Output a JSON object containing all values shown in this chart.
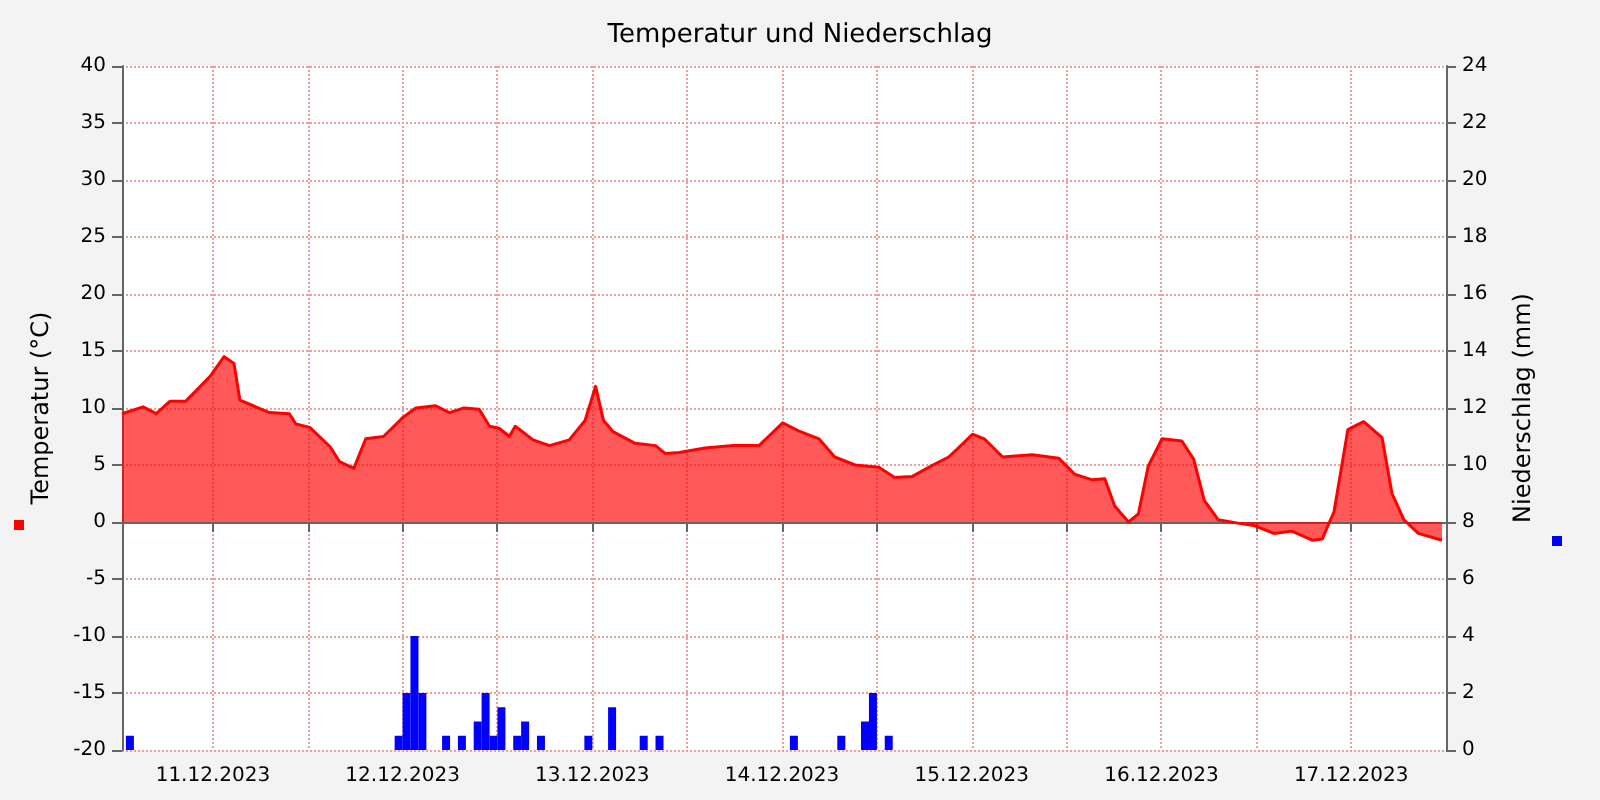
{
  "chart_data": {
    "type": "area",
    "title": "Temperatur und Niederschlag",
    "ylabel": "Temperatur (°C)",
    "y2label": "Niederschlag (mm)",
    "xlim": [
      "2023-12-11T00:30",
      "2023-12-18T00:00"
    ],
    "xticks": [
      {
        "value": "2023-12-11T12:00",
        "label": "11.12.2023"
      },
      {
        "value": "2023-12-12T00:00",
        "label": null
      },
      {
        "value": "2023-12-12T12:00",
        "label": "12.12.2023"
      },
      {
        "value": "2023-12-13T00:00",
        "label": null
      },
      {
        "value": "2023-12-13T12:00",
        "label": "13.12.2023"
      },
      {
        "value": "2023-12-14T00:00",
        "label": null
      },
      {
        "value": "2023-12-14T12:00",
        "label": "14.12.2023"
      },
      {
        "value": "2023-12-15T00:00",
        "label": null
      },
      {
        "value": "2023-12-15T12:00",
        "label": "15.12.2023"
      },
      {
        "value": "2023-12-16T00:00",
        "label": null
      },
      {
        "value": "2023-12-16T12:00",
        "label": "16.12.2023"
      },
      {
        "value": "2023-12-17T00:00",
        "label": null
      },
      {
        "value": "2023-12-17T12:00",
        "label": "17.12.2023"
      }
    ],
    "ylim": [
      -20,
      40
    ],
    "yticks": [
      -20,
      -15,
      -10,
      -5,
      0,
      5,
      10,
      15,
      20,
      25,
      30,
      35,
      40
    ],
    "y2lim": [
      0,
      24
    ],
    "y2ticks": [
      0,
      2,
      4,
      6,
      8,
      10,
      12,
      14,
      16,
      18,
      20,
      22,
      24
    ],
    "grid": true,
    "series": [
      {
        "color": "#ff0000",
        "x": [
          "2023-12-11T00:30",
          "2023-12-11T03:10",
          "2023-12-11T04:50",
          "2023-12-11T06:35",
          "2023-12-11T08:35",
          "2023-12-11T10:25",
          "2023-12-11T11:40",
          "2023-12-11T13:25",
          "2023-12-11T14:40",
          "2023-12-11T15:25",
          "2023-12-11T17:25",
          "2023-12-11T19:10",
          "2023-12-11T21:40",
          "2023-12-11T22:30",
          "2023-12-12T00:15",
          "2023-12-12T02:50",
          "2023-12-12T04:00",
          "2023-12-12T05:50",
          "2023-12-12T07:20",
          "2023-12-12T09:35",
          "2023-12-12T12:05",
          "2023-12-12T13:40",
          "2023-12-12T16:10",
          "2023-12-12T17:55",
          "2023-12-12T19:45",
          "2023-12-12T21:40",
          "2023-12-12T23:00",
          "2023-12-13T00:15",
          "2023-12-13T01:30",
          "2023-12-13T02:15",
          "2023-12-13T04:30",
          "2023-12-13T06:35",
          "2023-12-13T09:05",
          "2023-12-13T11:05",
          "2023-12-13T12:25",
          "2023-12-13T13:25",
          "2023-12-13T14:40",
          "2023-12-13T17:25",
          "2023-12-13T20:00",
          "2023-12-13T21:15",
          "2023-12-13T23:00",
          "2023-12-14T02:15",
          "2023-12-14T05:50",
          "2023-12-14T09:05",
          "2023-12-14T12:05",
          "2023-12-14T14:05",
          "2023-12-14T16:40",
          "2023-12-14T18:40",
          "2023-12-14T21:15",
          "2023-12-15T00:15",
          "2023-12-15T02:15",
          "2023-12-15T04:30",
          "2023-12-15T07:05",
          "2023-12-15T09:05",
          "2023-12-15T10:55",
          "2023-12-15T12:05",
          "2023-12-15T13:35",
          "2023-12-15T15:55",
          "2023-12-15T19:40",
          "2023-12-15T23:00",
          "2023-12-16T01:00",
          "2023-12-16T03:15",
          "2023-12-16T04:50",
          "2023-12-16T06:05",
          "2023-12-16T07:50",
          "2023-12-16T09:05",
          "2023-12-16T10:20",
          "2023-12-16T12:05",
          "2023-12-16T14:35",
          "2023-12-16T16:05",
          "2023-12-16T17:25",
          "2023-12-16T19:10",
          "2023-12-16T21:40",
          "2023-12-16T23:40",
          "2023-12-17T02:15",
          "2023-12-17T04:30",
          "2023-12-17T07:05",
          "2023-12-17T08:20",
          "2023-12-17T09:50",
          "2023-12-17T11:35",
          "2023-12-17T13:35",
          "2023-12-17T15:55",
          "2023-12-17T17:10",
          "2023-12-17T18:40",
          "2023-12-17T20:30",
          "2023-12-17T23:30"
        ],
        "values": [
          9.5,
          10.1,
          9.5,
          10.6,
          10.6,
          11.9,
          12.8,
          14.5,
          13.9,
          10.7,
          10.1,
          9.6,
          9.5,
          8.6,
          8.3,
          6.6,
          5.3,
          4.7,
          7.3,
          7.5,
          9.2,
          10.0,
          10.2,
          9.6,
          10.0,
          9.9,
          8.4,
          8.2,
          7.5,
          8.4,
          7.2,
          6.7,
          7.2,
          8.9,
          11.9,
          8.9,
          7.9,
          6.9,
          6.7,
          6.0,
          6.1,
          6.5,
          6.7,
          6.7,
          8.7,
          8.0,
          7.3,
          5.7,
          5.0,
          4.8,
          3.9,
          4.0,
          5.0,
          5.7,
          6.9,
          7.7,
          7.3,
          5.7,
          5.9,
          5.6,
          4.2,
          3.7,
          3.8,
          1.4,
          0.0,
          0.7,
          4.9,
          7.3,
          7.1,
          5.5,
          1.9,
          0.2,
          -0.1,
          -0.3,
          -1.0,
          -0.8,
          -1.6,
          -1.5,
          0.9,
          8.1,
          8.8,
          7.4,
          2.5,
          0.2,
          -1.0,
          -1.6
        ]
      },
      {
        "type": "bar",
        "axis": "y2",
        "color": "#0000ff",
        "x": [
          "2023-12-11T01:30",
          "2023-12-12T11:30",
          "2023-12-12T12:30",
          "2023-12-12T13:30",
          "2023-12-12T14:30",
          "2023-12-12T17:30",
          "2023-12-12T19:30",
          "2023-12-12T21:30",
          "2023-12-12T22:30",
          "2023-12-12T23:30",
          "2023-12-13T00:30",
          "2023-12-13T02:30",
          "2023-12-13T03:30",
          "2023-12-13T05:30",
          "2023-12-13T11:30",
          "2023-12-13T14:30",
          "2023-12-13T18:30",
          "2023-12-13T20:30",
          "2023-12-14T13:30",
          "2023-12-14T19:30",
          "2023-12-14T22:30",
          "2023-12-14T23:30",
          "2023-12-15T01:30"
        ],
        "values": [
          0.5,
          0.5,
          2,
          4,
          2,
          0.5,
          0.5,
          1,
          2,
          0.5,
          1.5,
          0.5,
          1,
          0.5,
          0.5,
          1.5,
          0.5,
          0.5,
          0.5,
          0.5,
          1,
          2,
          0.5
        ]
      }
    ]
  }
}
